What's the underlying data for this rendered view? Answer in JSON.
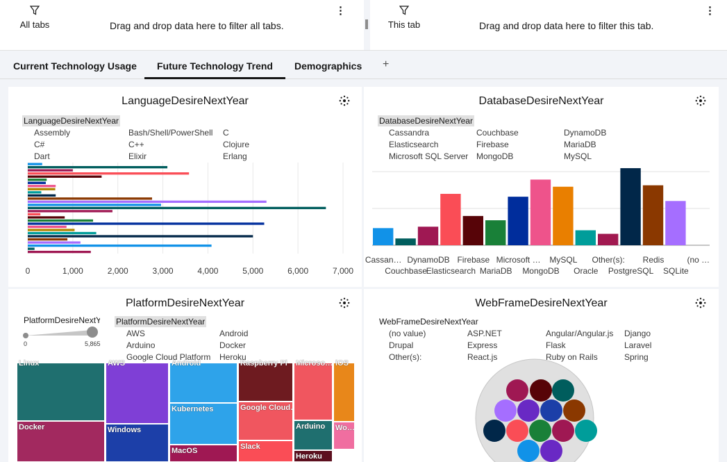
{
  "filters": {
    "left": {
      "label": "All tabs",
      "drop_text": "Drag and drop data here to filter all tabs."
    },
    "right": {
      "label": "This tab",
      "drop_text": "Drag and drop data here to filter this tab."
    },
    "funnel_icon": "funnel-icon",
    "menu_icon": "kebab-menu-icon"
  },
  "tabs": [
    {
      "label": "Current Technology Usage",
      "active": false
    },
    {
      "label": "Future Technology Trend",
      "active": true
    },
    {
      "label": "Demographics",
      "active": false
    }
  ],
  "add_tab": "+",
  "widgets": {
    "language": {
      "title": "LanguageDesireNextYear",
      "legend_title": "LanguageDesireNextYear",
      "legend": [
        "Assembly",
        "Bash/Shell/PowerShell",
        "C",
        "C#",
        "C++",
        "Clojure",
        "Dart",
        "Elixir",
        "Erlang"
      ]
    },
    "database": {
      "title": "DatabaseDesireNextYear",
      "legend_title": "DatabaseDesireNextYear",
      "legend": [
        "Cassandra",
        "Couchbase",
        "DynamoDB",
        "Elasticsearch",
        "Firebase",
        "MariaDB",
        "Microsoft SQL Server",
        "MongoDB",
        "MySQL"
      ]
    },
    "platform": {
      "title": "PlatformDesireNextYear",
      "slider_label": "PlatformDesireNextY",
      "slider_min": "0",
      "slider_max": "5,865",
      "legend_title": "PlatformDesireNextYear",
      "legend": [
        "AWS",
        "Android",
        "Arduino",
        "Docker",
        "Google Cloud Platform",
        "Heroku"
      ]
    },
    "webframe": {
      "title": "WebFrameDesireNextYear",
      "legend_title": "WebFrameDesireNextYear",
      "legend": [
        "(no value)",
        "ASP.NET",
        "Angular/Angular.js",
        "Django",
        "Drupal",
        "Express",
        "Flask",
        "Laravel",
        "Other(s):",
        "React.js",
        "Ruby on Rails",
        "Spring"
      ]
    }
  },
  "chart_data": [
    {
      "type": "bar",
      "orientation": "horizontal",
      "title": "LanguageDesireNextYear",
      "xlim": [
        0,
        7000
      ],
      "x_ticks": [
        "0",
        "1,000",
        "2,000",
        "3,000",
        "4,000",
        "5,000",
        "6,000",
        "7,000"
      ],
      "values": [
        320,
        3100,
        1000,
        3580,
        1640,
        420,
        400,
        620,
        610,
        300,
        620,
        2760,
        5300,
        2960,
        6620,
        1880,
        280,
        820,
        1450,
        5250,
        860,
        1040,
        1520,
        5000,
        880,
        1170,
        4080,
        150,
        1400
      ],
      "colors": [
        "#1192e8",
        "#005d5d",
        "#9f1853",
        "#fa4d56",
        "#570408",
        "#198038",
        "#002d9c",
        "#ee538b",
        "#b28600",
        "#009d9a",
        "#012749",
        "#8a3800",
        "#a56eff",
        "#1192e8",
        "#005d5d",
        "#9f1853",
        "#fa4d56",
        "#570408",
        "#198038",
        "#002d9c",
        "#ee538b",
        "#b28600",
        "#009d9a",
        "#012749",
        "#8a3800",
        "#a56eff",
        "#1192e8",
        "#005d5d",
        "#9f1853"
      ]
    },
    {
      "type": "bar",
      "title": "DatabaseDesireNextYear",
      "categories": [
        "Cassandra",
        "Couchbase",
        "DynamoDB",
        "Elasticsearch",
        "Firebase",
        "MariaDB",
        "Microsoft SQL Server",
        "MongoDB",
        "MySQL",
        "Oracle",
        "Other(s):",
        "PostgreSQL",
        "Redis",
        "SQLite",
        "(no value)"
      ],
      "tick_labels": [
        "Cassan…",
        "Couchbase",
        "DynamoDB",
        "Elasticsearch",
        "Firebase",
        "MariaDB",
        "Microsoft …",
        "MongoDB",
        "MySQL",
        "Oracle",
        "Other(s):",
        "PostgreSQL",
        "Redis",
        "SQLite",
        "(no …"
      ],
      "values": [
        2400,
        950,
        2600,
        7200,
        4100,
        3500,
        6800,
        9200,
        8200,
        2100,
        1600,
        10800,
        8400,
        6200,
        0
      ],
      "colors": [
        "#1192e8",
        "#005d5d",
        "#9f1853",
        "#fa4d56",
        "#570408",
        "#198038",
        "#002d9c",
        "#ee538b",
        "#e97f00",
        "#009d9a",
        "#a11950",
        "#012749",
        "#8a3800",
        "#a56eff",
        "#8a3800"
      ],
      "grid": true
    },
    {
      "type": "treemap",
      "title": "PlatformDesireNextYear",
      "cells": [
        "Linux",
        "Docker",
        "AWS",
        "Windows",
        "Android",
        "Kubernetes",
        "MacOS",
        "Raspberry Pi",
        "Google Cloud…",
        "Slack",
        "Microso…",
        "Arduino",
        "Heroku",
        "iOS",
        "Wo…"
      ],
      "cell_colors": [
        "#1f6f6f",
        "#a2295f",
        "#7f3fd6",
        "#1c3fa8",
        "#2ea3ea",
        "#2ea3ea",
        "#9f1853",
        "#6e1b20",
        "#f0565f",
        "#fa4d56",
        "#f0565f",
        "#1f6f6f",
        "#5c0f1e",
        "#e8871a",
        "#f06ea0"
      ]
    },
    {
      "type": "bubble",
      "title": "WebFrameDesireNextYear",
      "series": [
        "(no value)",
        "ASP.NET",
        "Angular/Angular.js",
        "Django",
        "Drupal",
        "Express",
        "Flask",
        "Laravel",
        "Other(s):",
        "React.js",
        "Ruby on Rails",
        "Spring"
      ]
    }
  ]
}
